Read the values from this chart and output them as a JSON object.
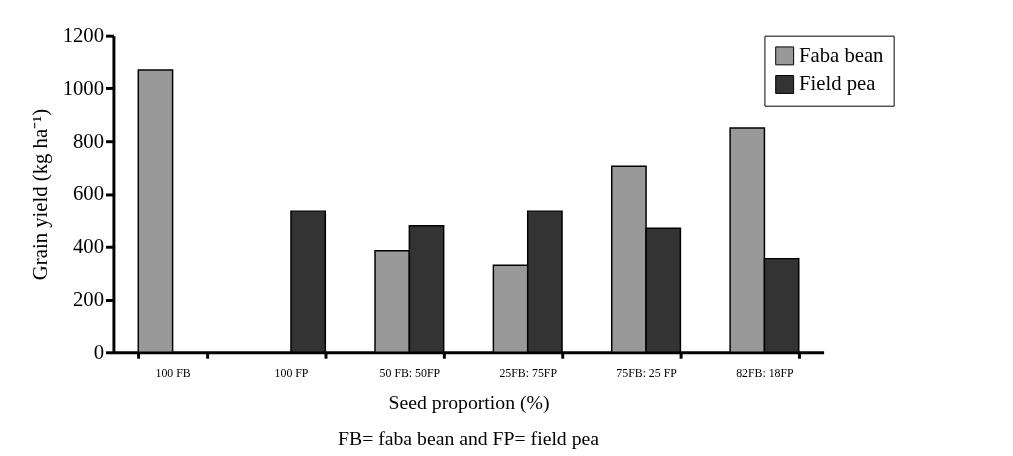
{
  "chart_data": {
    "type": "bar",
    "xlabel": "Seed proportion (%)",
    "ylabel": "Grain yield (kg ha⁻¹)",
    "categories": [
      "100 FB",
      "100 FP",
      "50 FB: 50FP",
      "25FB: 75FP",
      "75FB: 25 FP",
      "82FB: 18FP"
    ],
    "series": [
      {
        "name": "Faba bean",
        "color": "#999999",
        "values": [
          1070,
          null,
          385,
          330,
          705,
          850
        ]
      },
      {
        "name": "Field pea",
        "color": "#333333",
        "values": [
          null,
          535,
          480,
          535,
          470,
          355
        ]
      }
    ],
    "ylim": [
      0,
      1200
    ],
    "yticks": [
      0,
      200,
      400,
      600,
      800,
      1000,
      1200
    ],
    "grid": false,
    "legend": "top right",
    "annotations": [
      "FB= faba bean and FP= field pea"
    ]
  }
}
